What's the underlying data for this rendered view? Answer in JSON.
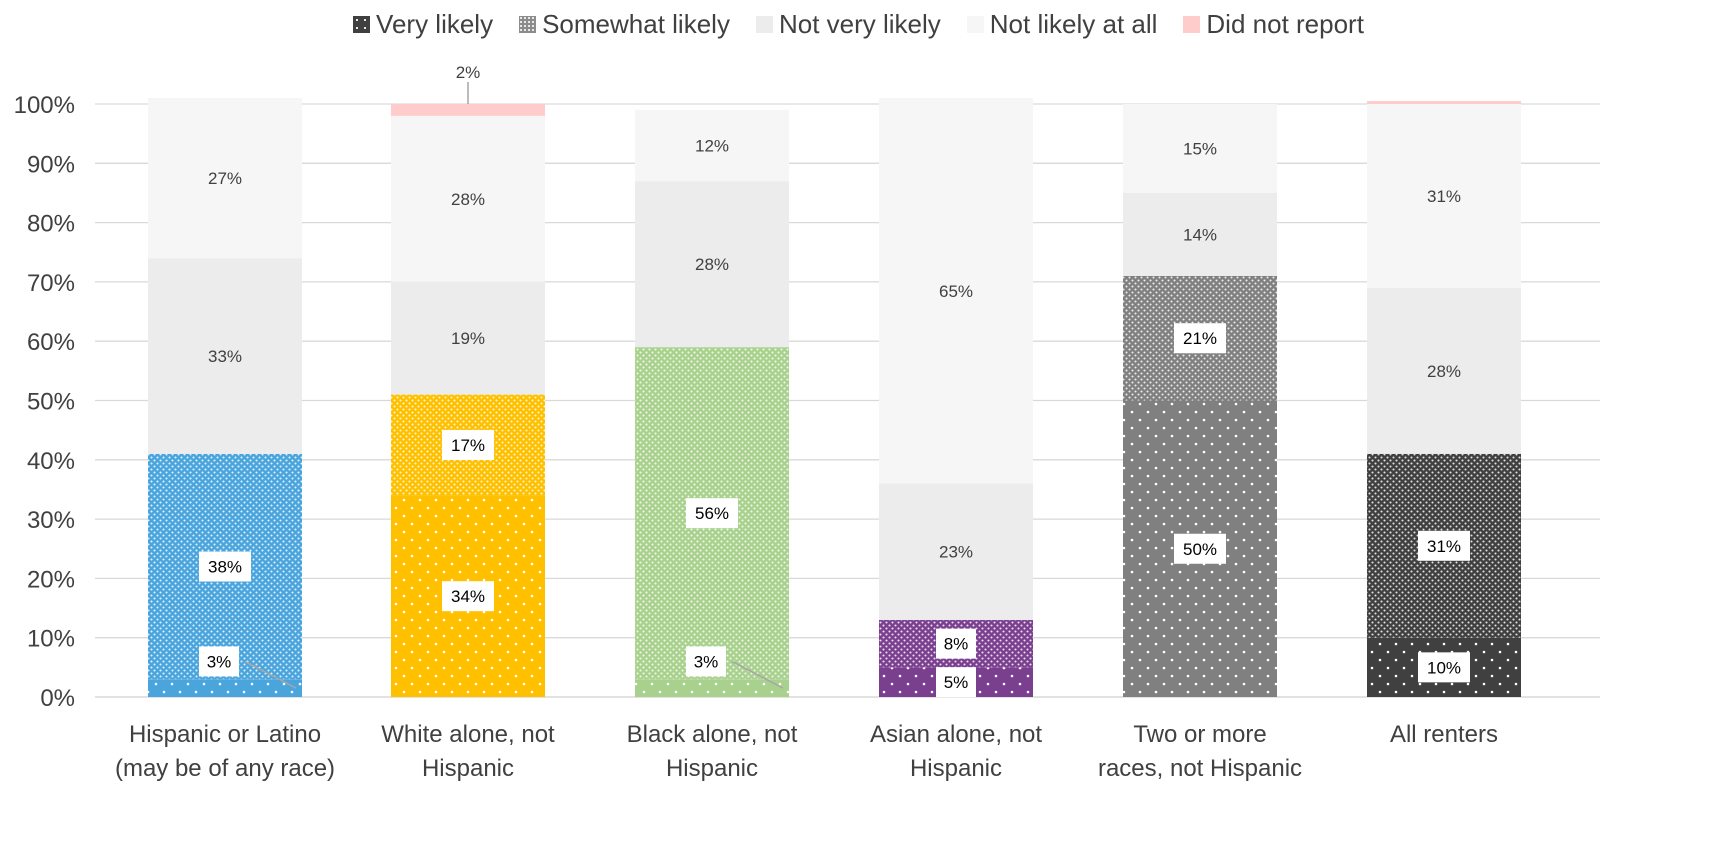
{
  "chart_data": {
    "type": "bar",
    "stacked": true,
    "y_axis": {
      "ylim": [
        0,
        100
      ],
      "ticks": [
        0,
        10,
        20,
        30,
        40,
        50,
        60,
        70,
        80,
        90,
        100
      ],
      "tick_labels": [
        "0%",
        "10%",
        "20%",
        "30%",
        "40%",
        "50%",
        "60%",
        "70%",
        "80%",
        "90%",
        "100%"
      ]
    },
    "grid": "horizontal",
    "legend_position": "top",
    "legend": [
      {
        "name": "Very likely",
        "swatch": "#404040"
      },
      {
        "name": "Somewhat likely",
        "swatch": "#8c8c8c"
      },
      {
        "name": "Not very likely",
        "swatch": "#ececec"
      },
      {
        "name": "Not likely at all",
        "swatch": "#f6f6f6"
      },
      {
        "name": "Did not report",
        "swatch": "#ffcccc"
      }
    ],
    "categories": [
      {
        "label_lines": [
          "Hispanic or Latino",
          "(may be of any race)"
        ],
        "color": "#4aa5dd"
      },
      {
        "label_lines": [
          "White alone, not",
          "Hispanic"
        ],
        "color": "#ffc000"
      },
      {
        "label_lines": [
          "Black alone, not",
          "Hispanic"
        ],
        "color": "#a9d18e"
      },
      {
        "label_lines": [
          "Asian alone, not",
          "Hispanic"
        ],
        "color": "#7a3f8f"
      },
      {
        "label_lines": [
          "Two or more",
          "races, not Hispanic"
        ],
        "color": "#808080"
      },
      {
        "label_lines": [
          "All renters"
        ],
        "color": "#404040"
      }
    ],
    "series": [
      {
        "name": "Very likely",
        "values": [
          3,
          34,
          3,
          5,
          50,
          10
        ],
        "labels": [
          "3%",
          "34%",
          "3%",
          "5%",
          "50%",
          "10%"
        ]
      },
      {
        "name": "Somewhat likely",
        "values": [
          38,
          17,
          56,
          8,
          21,
          31
        ],
        "labels": [
          "38%",
          "17%",
          "56%",
          "8%",
          "21%",
          "31%"
        ]
      },
      {
        "name": "Not very likely",
        "values": [
          33,
          19,
          28,
          23,
          14,
          28
        ],
        "labels": [
          "33%",
          "19%",
          "28%",
          "23%",
          "14%",
          "28%"
        ]
      },
      {
        "name": "Not likely at all",
        "values": [
          27,
          28,
          12,
          65,
          15,
          31
        ],
        "labels": [
          "27%",
          "28%",
          "12%",
          "65%",
          "15%",
          "31%"
        ]
      },
      {
        "name": "Did not report",
        "values": [
          0,
          2,
          0,
          0,
          0,
          0.5
        ],
        "labels": [
          "",
          "2%",
          "",
          "",
          "",
          ""
        ]
      }
    ]
  }
}
